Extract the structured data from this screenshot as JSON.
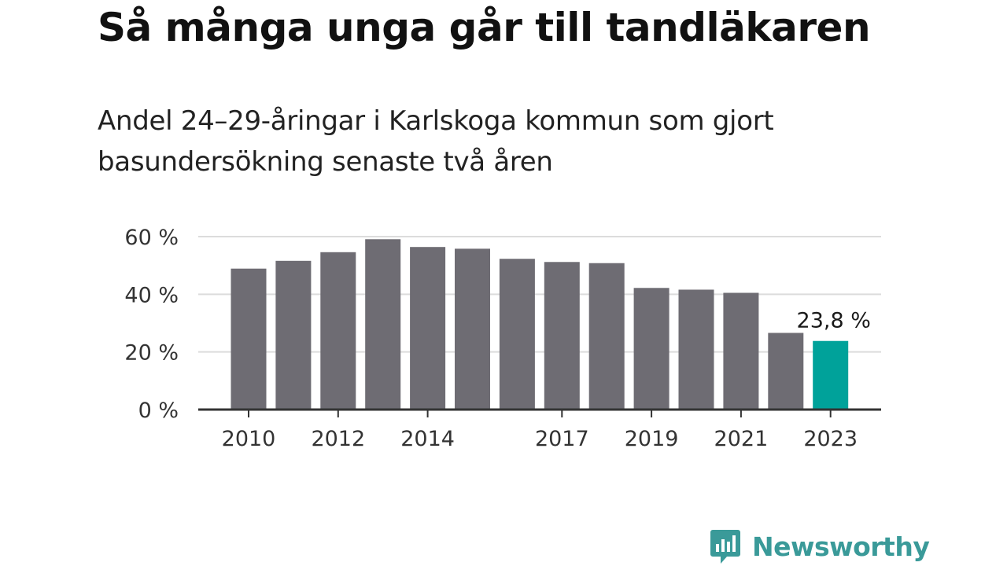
{
  "title": "Så många unga går till tandläkaren",
  "subtitle": "Andel 24–29-åringar i Karlskoga kommun som gjort basundersökning senaste två åren",
  "brand": {
    "name": "Newsworthy",
    "color": "#3a9a99",
    "icon": "bar-chart-speech-bubble-icon"
  },
  "colors": {
    "bar": "#6e6c73",
    "highlight": "#00a29a",
    "grid": "#dcdcdc",
    "axis": "#333333"
  },
  "chart_data": {
    "type": "bar",
    "title": "Så många unga går till tandläkaren",
    "subtitle": "Andel 24–29-åringar i Karlskoga kommun som gjort basundersökning senaste två åren",
    "xlabel": "",
    "ylabel": "",
    "categories": [
      "2010",
      "2011",
      "2012",
      "2013",
      "2014",
      "2015",
      "2016",
      "2017",
      "2018",
      "2019",
      "2020",
      "2021",
      "2022",
      "2023"
    ],
    "values": [
      48.9,
      51.6,
      54.6,
      59.1,
      56.4,
      55.8,
      52.3,
      51.2,
      50.8,
      42.2,
      41.6,
      40.5,
      26.6,
      23.8
    ],
    "ylim": [
      0,
      60
    ],
    "yticks": [
      0,
      20,
      40,
      60
    ],
    "ytick_labels": [
      "0 %",
      "20 %",
      "40 %",
      "60 %"
    ],
    "xtick_labels": [
      "2010",
      "2012",
      "2014",
      "2017",
      "2019",
      "2021",
      "2023"
    ],
    "grid": true,
    "highlight": {
      "category": "2023",
      "label": "23,8 %"
    }
  }
}
